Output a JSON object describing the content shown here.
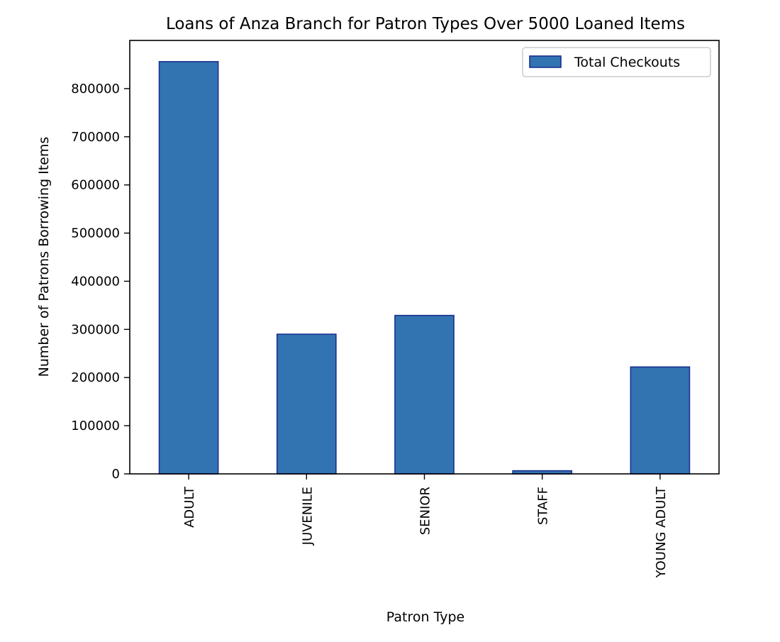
{
  "chart_data": {
    "type": "bar",
    "title": "Loans of Anza Branch for Patron Types Over 5000 Loaned Items",
    "xlabel": "Patron Type",
    "ylabel": "Number of Patrons Borrowing Items",
    "categories": [
      "ADULT",
      "JUVENILE",
      "SENIOR",
      "STAFF",
      "YOUNG ADULT"
    ],
    "series": [
      {
        "name": "Total Checkouts",
        "values": [
          856000,
          290000,
          329000,
          6500,
          222000
        ]
      }
    ],
    "ylim": [
      0,
      900000
    ],
    "yticks": [
      0,
      100000,
      200000,
      300000,
      400000,
      500000,
      600000,
      700000,
      800000
    ],
    "ytick_labels": [
      "0",
      "100000",
      "200000",
      "300000",
      "400000",
      "500000",
      "600000",
      "700000",
      "800000"
    ],
    "grid": false,
    "legend_position": "top-right",
    "colors": {
      "bar_fill": "#3274b1",
      "bar_edge": "#1a2f8f",
      "axis": "#000000",
      "legend_border": "#cccccc"
    }
  }
}
